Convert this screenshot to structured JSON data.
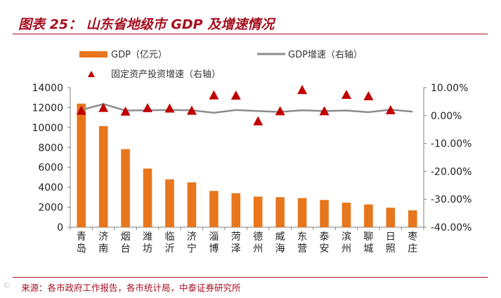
{
  "header": {
    "title": "图表 25：  山东省地级市 GDP 及增速情况"
  },
  "footer": {
    "source": "来源：各市政府工作报告，各市统计局，中泰证券研究所",
    "watermark": "©"
  },
  "colors": {
    "brand": "#a50e1e",
    "bar": "#e8761d",
    "growth_line": "#8c8c8c",
    "marker": "#c00000"
  },
  "chart_data": {
    "type": "bar",
    "title": "",
    "categories": [
      "青岛",
      "济南",
      "烟台",
      "潍坊",
      "临沂",
      "济宁",
      "淄博",
      "菏泽",
      "德州",
      "威海",
      "东营",
      "泰安",
      "滨州",
      "聊城",
      "日照",
      "枣庄"
    ],
    "category_chars": [
      [
        "青",
        "岛"
      ],
      [
        "济",
        "南"
      ],
      [
        "烟",
        "台"
      ],
      [
        "潍",
        "坊"
      ],
      [
        "临",
        "沂"
      ],
      [
        "济",
        "宁"
      ],
      [
        "淄",
        "博"
      ],
      [
        "菏",
        "泽"
      ],
      [
        "德",
        "州"
      ],
      [
        "威",
        "海"
      ],
      [
        "东",
        "营"
      ],
      [
        "泰",
        "安"
      ],
      [
        "滨",
        "州"
      ],
      [
        "聊",
        "城"
      ],
      [
        "日",
        "照"
      ],
      [
        "枣",
        "庄"
      ]
    ],
    "series": [
      {
        "name": "GDP（亿元）",
        "type": "bar",
        "axis": "left",
        "values": [
          12400,
          10140,
          7830,
          5880,
          4800,
          4500,
          3640,
          3410,
          3070,
          3010,
          2920,
          2730,
          2460,
          2280,
          1950,
          1690
        ]
      },
      {
        "name": "GDP增速（右轴）",
        "type": "line",
        "axis": "right",
        "values": [
          2.0,
          4.1,
          1.8,
          1.9,
          2.0,
          1.9,
          1.0,
          2.0,
          1.6,
          1.3,
          1.9,
          1.6,
          1.8,
          1.2,
          2.1,
          1.4
        ]
      },
      {
        "name": "固定资产投资增速（右轴）",
        "type": "scatter",
        "axis": "right",
        "values": [
          1.8,
          2.8,
          1.5,
          2.7,
          2.6,
          1.8,
          7.3,
          7.2,
          -2.0,
          1.6,
          9.2,
          1.6,
          7.5,
          7.0,
          2.0,
          null
        ]
      }
    ],
    "left_axis": {
      "min": 0,
      "max": 14000,
      "ticks": [
        "0",
        "2000",
        "4000",
        "6000",
        "8000",
        "10000",
        "12000",
        "14000"
      ]
    },
    "right_axis": {
      "min": -40,
      "max": 10,
      "ticks": [
        "-40.00%",
        "-30.00%",
        "-20.00%",
        "-10.00%",
        "0.00%",
        "10.00%"
      ]
    },
    "legend": {
      "bar": "GDP（亿元）",
      "line": "GDP增速（右轴）",
      "marker": "固定资产投资增速（右轴）"
    }
  }
}
